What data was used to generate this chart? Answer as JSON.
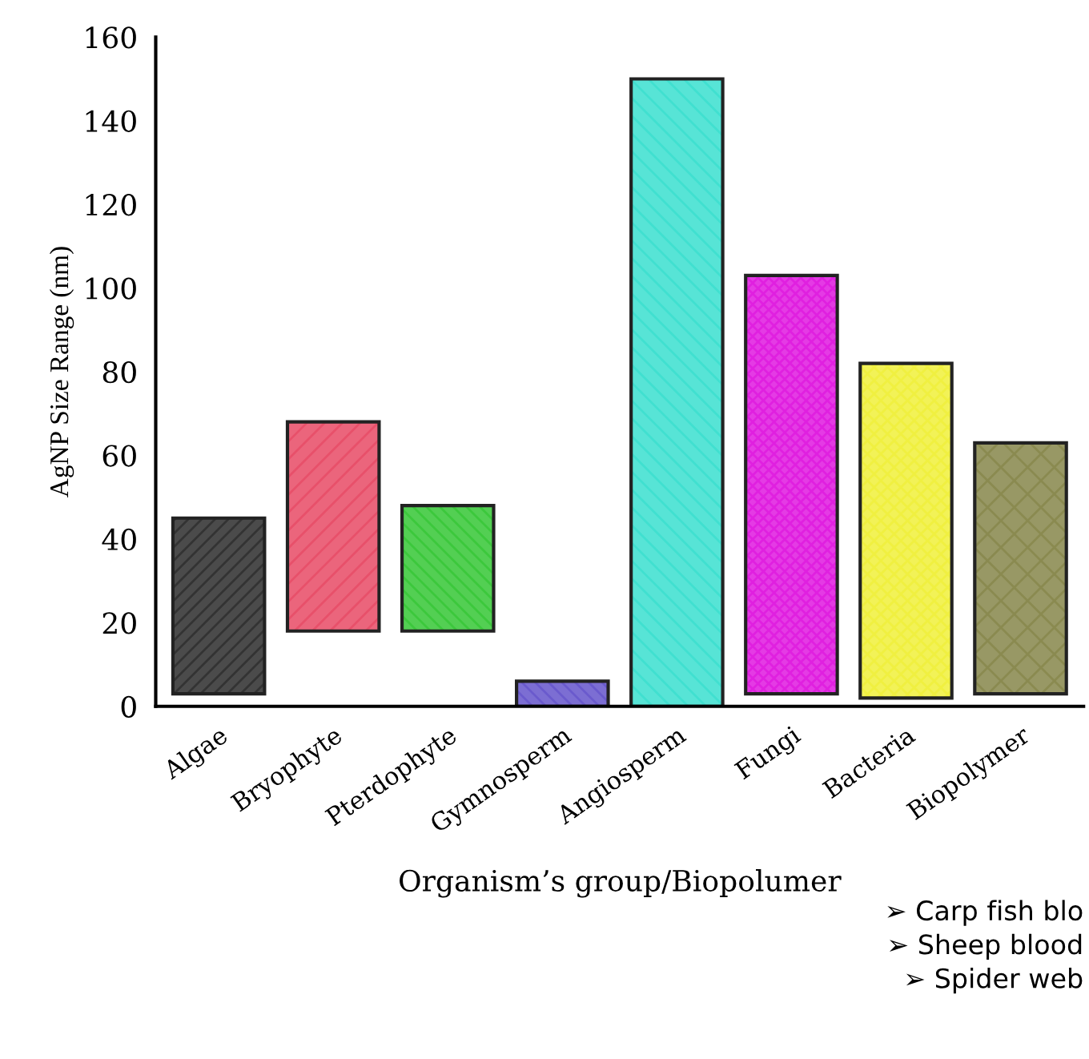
{
  "chart_data": {
    "type": "bar",
    "xlabel": "Organism’s group/Biopolumer",
    "ylabel": "AgNP Size Range (nm)",
    "categories": [
      "Algae",
      "Bryophyte",
      "Pterdophyte",
      "Gymnosperm",
      "Angiosperm",
      "Fungi",
      "Bacteria",
      "Biopolymer"
    ],
    "base": [
      3,
      18,
      18,
      0,
      0,
      3,
      2,
      3
    ],
    "values": [
      42,
      50,
      30,
      6,
      150,
      100,
      80,
      60
    ],
    "colors": [
      "#333333",
      "#e8506a",
      "#3cc83c",
      "#6a5acd",
      "#40e0d0",
      "#e020e0",
      "#f0f040",
      "#8a8a50"
    ],
    "ylim": [
      0,
      160
    ],
    "yticks": [
      0,
      20,
      40,
      60,
      80,
      100,
      120,
      140,
      160
    ],
    "grid": false,
    "annotations": [
      "➢ Carp fish blo",
      "➢ Sheep blood",
      "➢ Spider web"
    ]
  }
}
